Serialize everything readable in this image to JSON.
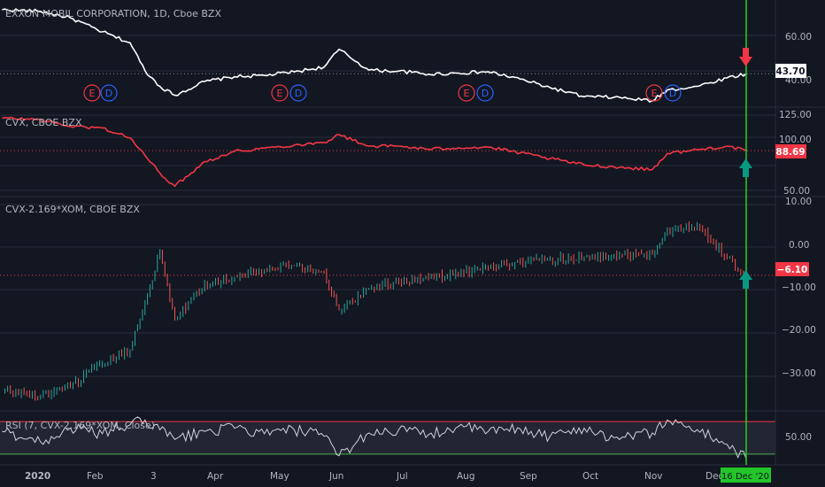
{
  "colors": {
    "background": "#131722",
    "grid": "#2a2e39",
    "axis_text": "#b2b5be",
    "xom_line": "#ffffff",
    "cvx_line": "#f23645",
    "candle_up": "#26a69a",
    "candle_down": "#ef5350",
    "rsi_line": "#d1d4dc",
    "rsi_band": "#2a2e39",
    "rsi_upper": "#f23645",
    "rsi_lower": "#4caf50",
    "cursor": "#22c52a",
    "arrow_down": "#f23645",
    "arrow_up": "#089981",
    "earnings_e": "#f23645",
    "earnings_d": "#2962ff"
  },
  "x_axis": {
    "ticks": [
      "2020",
      "Feb",
      "3",
      "Apr",
      "May",
      "Jun",
      "Jul",
      "Aug",
      "Sep",
      "Oct",
      "Nov",
      "Dec"
    ],
    "cursor_label": "16 Dec '20"
  },
  "panes": {
    "xom": {
      "title": "EXXON MOBIL CORPORATION, 1D, Cboe BZX",
      "axis_ticks": [
        "60.00",
        "40.00"
      ],
      "price_label": "43.70",
      "earnings_markers": [
        "E",
        "D",
        "E",
        "D",
        "E",
        "D",
        "E",
        "D"
      ]
    },
    "cvx": {
      "title": "CVX, CBOE BZX",
      "axis_ticks": [
        "125.00",
        "100.00",
        "50.00"
      ],
      "price_label": "88.69"
    },
    "spread": {
      "title": "CVX-2.169*XOM, CBOE BZX",
      "axis_ticks": [
        "10.00",
        "0.00",
        "−10.00",
        "−20.00",
        "−30.00"
      ],
      "price_label": "−6.10"
    },
    "rsi": {
      "title": "RSI (7, CVX-2.169*XOM, Close)",
      "axis_ticks": [
        "50.00"
      ]
    }
  },
  "chart_data": [
    {
      "type": "line",
      "title": "EXXON MOBIL CORPORATION, 1D, Cboe BZX",
      "x": [
        "2020-01-02",
        "2020-01-20",
        "2020-02-03",
        "2020-02-18",
        "2020-03-02",
        "2020-03-09",
        "2020-03-16",
        "2020-03-23",
        "2020-04-06",
        "2020-04-20",
        "2020-05-04",
        "2020-05-18",
        "2020-06-01",
        "2020-06-08",
        "2020-06-22",
        "2020-07-06",
        "2020-07-20",
        "2020-08-03",
        "2020-08-17",
        "2020-09-01",
        "2020-09-15",
        "2020-10-01",
        "2020-10-15",
        "2020-11-02",
        "2020-11-09",
        "2020-11-23",
        "2020-12-07",
        "2020-12-16"
      ],
      "y": [
        70.2,
        69.5,
        66.8,
        61.0,
        56.5,
        45.0,
        38.5,
        34.8,
        40.5,
        42.5,
        43.0,
        44.5,
        46.5,
        53.8,
        45.2,
        44.8,
        43.5,
        44.0,
        44.5,
        41.5,
        38.0,
        34.2,
        34.0,
        32.5,
        37.0,
        38.5,
        42.0,
        43.7
      ],
      "ylim": [
        31,
        72
      ],
      "last_value": 43.7
    },
    {
      "type": "line",
      "title": "CVX, CBOE BZX",
      "x": [
        "2020-01-02",
        "2020-01-20",
        "2020-02-03",
        "2020-02-18",
        "2020-03-02",
        "2020-03-09",
        "2020-03-16",
        "2020-03-23",
        "2020-04-06",
        "2020-04-20",
        "2020-05-04",
        "2020-05-18",
        "2020-06-01",
        "2020-06-08",
        "2020-06-22",
        "2020-07-06",
        "2020-07-20",
        "2020-08-03",
        "2020-08-17",
        "2020-09-01",
        "2020-09-15",
        "2020-10-01",
        "2020-10-15",
        "2020-11-02",
        "2020-11-09",
        "2020-11-23",
        "2020-12-07",
        "2020-12-16"
      ],
      "y": [
        120.0,
        118.5,
        112.0,
        110.5,
        101.0,
        84.0,
        67.0,
        54.5,
        78.0,
        88.0,
        91.0,
        94.0,
        96.5,
        104.0,
        93.0,
        93.0,
        90.0,
        91.5,
        92.0,
        86.5,
        81.0,
        75.0,
        73.0,
        70.5,
        86.0,
        89.5,
        93.0,
        88.69
      ],
      "ylim": [
        47,
        128
      ],
      "last_value": 88.69
    },
    {
      "type": "line",
      "title": "CVX-2.169*XOM, CBOE BZX",
      "x": [
        "2020-01-02",
        "2020-01-20",
        "2020-02-03",
        "2020-02-18",
        "2020-03-02",
        "2020-03-09",
        "2020-03-16",
        "2020-03-23",
        "2020-04-06",
        "2020-04-20",
        "2020-05-04",
        "2020-05-18",
        "2020-06-01",
        "2020-06-08",
        "2020-06-22",
        "2020-07-06",
        "2020-07-20",
        "2020-08-03",
        "2020-08-17",
        "2020-09-01",
        "2020-09-15",
        "2020-10-01",
        "2020-10-15",
        "2020-11-02",
        "2020-11-09",
        "2020-11-23",
        "2020-12-07",
        "2020-12-16"
      ],
      "y": [
        -32.0,
        -33.5,
        -31.0,
        -26.0,
        -23.0,
        -12.0,
        -1.0,
        -16.0,
        -8.0,
        -6.5,
        -5.0,
        -4.0,
        -5.5,
        -14.0,
        -9.0,
        -7.5,
        -6.5,
        -6.0,
        -4.5,
        -3.0,
        -2.5,
        -2.0,
        -1.5,
        -1.5,
        4.0,
        5.0,
        -2.0,
        -6.1
      ],
      "ylim": [
        -36,
        11
      ],
      "last_value": -6.1
    },
    {
      "type": "line",
      "title": "RSI (7, CVX-2.169*XOM, Close)",
      "x": [
        "2020-01-02",
        "2020-01-20",
        "2020-02-03",
        "2020-02-18",
        "2020-03-02",
        "2020-03-09",
        "2020-03-16",
        "2020-03-23",
        "2020-04-06",
        "2020-04-20",
        "2020-05-04",
        "2020-05-18",
        "2020-06-01",
        "2020-06-08",
        "2020-06-22",
        "2020-07-06",
        "2020-07-20",
        "2020-08-03",
        "2020-08-17",
        "2020-09-01",
        "2020-09-15",
        "2020-10-01",
        "2020-10-15",
        "2020-11-02",
        "2020-11-09",
        "2020-11-23",
        "2020-12-07",
        "2020-12-16"
      ],
      "y": [
        58,
        45,
        62,
        55,
        66,
        72,
        60,
        48,
        58,
        62,
        55,
        60,
        52,
        28,
        56,
        60,
        54,
        64,
        58,
        61,
        52,
        62,
        50,
        56,
        72,
        60,
        42,
        24
      ],
      "ylim": [
        20,
        80
      ],
      "bands": [
        30,
        70
      ]
    }
  ]
}
